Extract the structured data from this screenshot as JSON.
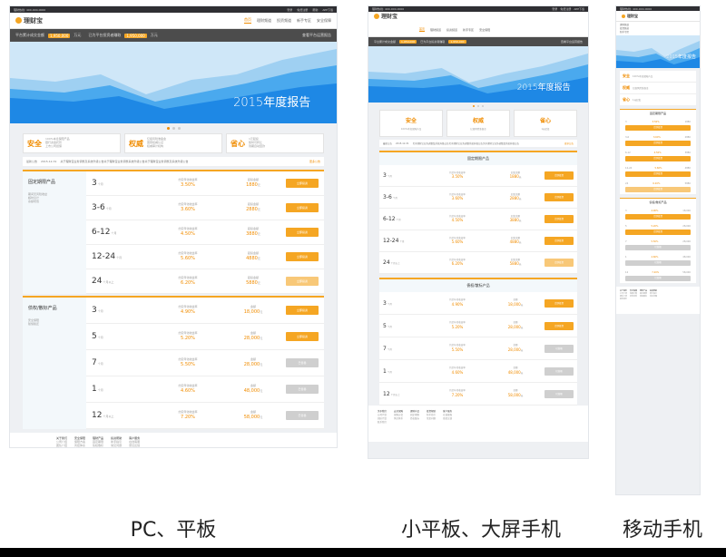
{
  "top": {
    "phone": "理财热线: 400-000-0000",
    "links": [
      "登录",
      "免费注册",
      "帮助",
      "APP下载"
    ]
  },
  "logo": "理财宝",
  "nav": [
    {
      "label": "首页",
      "active": true
    },
    {
      "label": "理财频道"
    },
    {
      "label": "投资频道"
    },
    {
      "label": "新手专区"
    },
    {
      "label": "安全保障"
    }
  ],
  "stats": {
    "label1": "平台累计成交金额",
    "num1": "1,950,000",
    "unit": "万元",
    "label2": "已为平台投资者赚取",
    "num2": "1,950,000",
    "link": "查看平台运营报告"
  },
  "banner": {
    "text": "2015年度报告"
  },
  "features": [
    {
      "title": "安全",
      "lines": [
        "100%本息保障产品",
        "银行资金托管",
        "上市公司担保"
      ]
    },
    {
      "title": "权威",
      "lines": [
        "亿级风险准备金",
        "国家权威认证",
        "权威审计机构"
      ]
    },
    {
      "title": "省心",
      "lines": [
        "1元起投",
        "随时可转让",
        "到期自动回款"
      ]
    }
  ],
  "notice": {
    "label": "最新公告",
    "date": "2015-12-31",
    "text": "关于理财宝业务调整及系统升级公告关于理财宝业务调整系统升级公告关于理财宝业务调整及系统升级公告",
    "more": "更多公告"
  },
  "fixed": {
    "title": "固定期限产品",
    "tags": [
      "期间无风险收益",
      "超时息计",
      "余额增值"
    ],
    "rows": [
      {
        "term": "3",
        "unit": "个月",
        "rate": "3.50%",
        "amount": "1880",
        "btn": "立即投资",
        "style": ""
      },
      {
        "term": "3-6",
        "unit": "个月",
        "rate": "3.60%",
        "amount": "2880",
        "btn": "立即投资",
        "style": ""
      },
      {
        "term": "6-12",
        "unit": "个月",
        "rate": "4.50%",
        "amount": "3880",
        "btn": "立即投资",
        "style": ""
      },
      {
        "term": "12-24",
        "unit": "个月",
        "rate": "5.60%",
        "amount": "4880",
        "btn": "立即投资",
        "style": ""
      },
      {
        "term": "24",
        "unit": "个月以上",
        "rate": "6.20%",
        "amount": "5880",
        "btn": "立即投资",
        "style": "light"
      }
    ],
    "rate_label": "约定年化收益率",
    "amount_label": "起投金额",
    "yuan": "元"
  },
  "credit": {
    "title": "债权/散标产品",
    "tags": [
      "安全保障",
      "随借随还"
    ],
    "rows": [
      {
        "term": "3",
        "unit": "个月",
        "rate": "4.90%",
        "amount": "18,000",
        "btn": "立即投资",
        "style": ""
      },
      {
        "term": "5",
        "unit": "个月",
        "rate": "5.20%",
        "amount": "28,000",
        "btn": "立即投资",
        "style": ""
      },
      {
        "term": "7",
        "unit": "个月",
        "rate": "5.50%",
        "amount": "28,000",
        "btn": "已售罄",
        "style": "grey"
      },
      {
        "term": "1",
        "unit": "个月",
        "rate": "4.60%",
        "amount": "48,000",
        "btn": "已售罄",
        "style": "grey"
      },
      {
        "term": "12",
        "unit": "个月以上",
        "rate": "7.20%",
        "amount": "58,000",
        "btn": "已售罄",
        "style": "grey"
      }
    ],
    "rate_label": "约定年化收益率",
    "amount_label": "金额",
    "yuan": "元"
  },
  "footer": [
    {
      "title": "关于我们",
      "items": [
        "公司介绍",
        "团队介绍",
        "联系我们"
      ]
    },
    {
      "title": "安全保障",
      "items": [
        "保障方案",
        "风控体系"
      ]
    },
    {
      "title": "理财产品",
      "items": [
        "固定期限",
        "债权散标"
      ]
    },
    {
      "title": "投资帮助",
      "items": [
        "新手指引",
        "常见问题"
      ]
    },
    {
      "title": "客户服务",
      "items": [
        "在线客服",
        "意见反馈"
      ]
    }
  ],
  "captions": {
    "left": "PC、平板",
    "middle": "小平板、大屏手机",
    "right": "移动手机"
  },
  "colors": {
    "accent": "#f5a623",
    "dark": "#2f2f33",
    "banner": "#2196f3"
  }
}
